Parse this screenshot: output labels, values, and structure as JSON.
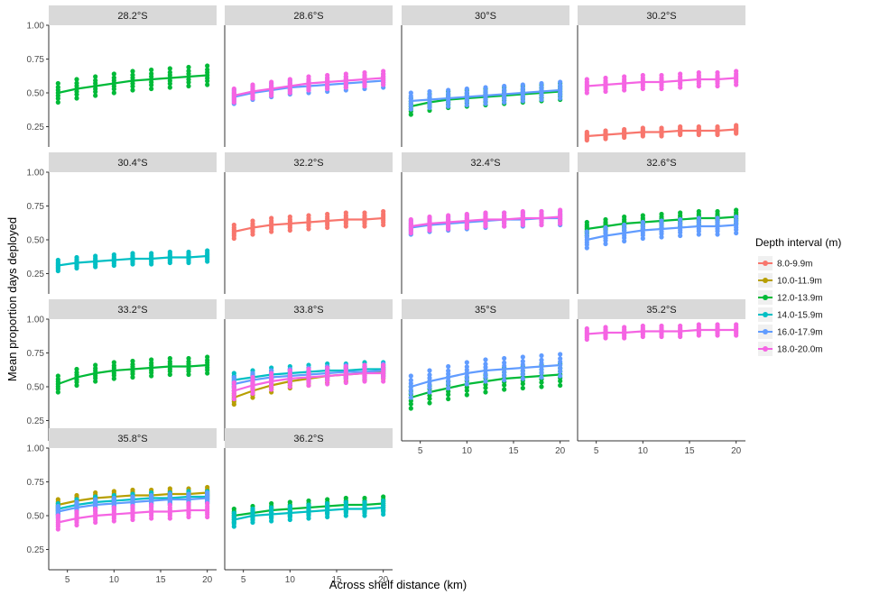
{
  "chart_data": {
    "type": "scatter",
    "xlabel": "Across shelf distance (km)",
    "ylabel": "Mean proportion days deployed",
    "x_ticks": [
      5,
      10,
      15,
      20
    ],
    "y_ticks": [
      0.25,
      0.5,
      0.75,
      1.0
    ],
    "y_tick_labels": [
      "0.25",
      "0.50",
      "0.75",
      "1.00"
    ],
    "xlim": [
      3,
      21
    ],
    "ylim": [
      0.1,
      1.0
    ],
    "x_samples": [
      4,
      6,
      8,
      10,
      12,
      14,
      16,
      18,
      20
    ],
    "legend": {
      "title": "Depth interval (m)",
      "entries": [
        {
          "label": "8.0-9.9m",
          "color": "#f8766d"
        },
        {
          "label": "10.0-11.9m",
          "color": "#b79f00"
        },
        {
          "label": "12.0-13.9m",
          "color": "#00ba38"
        },
        {
          "label": "14.0-15.9m",
          "color": "#00bfc4"
        },
        {
          "label": "16.0-17.9m",
          "color": "#619cff"
        },
        {
          "label": "18.0-20.0m",
          "color": "#f564e3"
        }
      ]
    },
    "panels": [
      {
        "label": "28.2°S",
        "series": [
          {
            "depth": "12.0-13.9m",
            "color": "#00ba38",
            "fit": [
              0.5,
              0.53,
              0.55,
              0.57,
              0.59,
              0.6,
              0.61,
              0.62,
              0.63
            ],
            "spread": 0.07
          }
        ]
      },
      {
        "label": "28.6°S",
        "series": [
          {
            "depth": "16.0-17.9m",
            "color": "#619cff",
            "fit": [
              0.47,
              0.5,
              0.52,
              0.54,
              0.55,
              0.56,
              0.57,
              0.58,
              0.59
            ],
            "spread": 0.05
          },
          {
            "depth": "18.0-20.0m",
            "color": "#f564e3",
            "fit": [
              0.48,
              0.51,
              0.53,
              0.55,
              0.57,
              0.58,
              0.59,
              0.6,
              0.61
            ],
            "spread": 0.05
          }
        ]
      },
      {
        "label": "30°S",
        "series": [
          {
            "depth": "12.0-13.9m",
            "color": "#00ba38",
            "fit": [
              0.4,
              0.43,
              0.45,
              0.46,
              0.47,
              0.48,
              0.49,
              0.5,
              0.51
            ],
            "spread": 0.06
          },
          {
            "depth": "16.0-17.9m",
            "color": "#619cff",
            "fit": [
              0.44,
              0.45,
              0.46,
              0.47,
              0.48,
              0.49,
              0.5,
              0.51,
              0.52
            ],
            "spread": 0.06
          }
        ]
      },
      {
        "label": "30.2°S",
        "series": [
          {
            "depth": "8.0-9.9m",
            "color": "#f8766d",
            "fit": [
              0.18,
              0.19,
              0.2,
              0.21,
              0.21,
              0.22,
              0.22,
              0.22,
              0.23
            ],
            "spread": 0.03
          },
          {
            "depth": "18.0-20.0m",
            "color": "#f564e3",
            "fit": [
              0.55,
              0.56,
              0.57,
              0.58,
              0.58,
              0.59,
              0.6,
              0.6,
              0.61
            ],
            "spread": 0.05
          }
        ]
      },
      {
        "label": "30.4°S",
        "series": [
          {
            "depth": "14.0-15.9m",
            "color": "#00bfc4",
            "fit": [
              0.31,
              0.33,
              0.34,
              0.35,
              0.36,
              0.36,
              0.37,
              0.37,
              0.38
            ],
            "spread": 0.04
          }
        ]
      },
      {
        "label": "32.2°S",
        "series": [
          {
            "depth": "8.0-9.9m",
            "color": "#f8766d",
            "fit": [
              0.56,
              0.59,
              0.61,
              0.62,
              0.63,
              0.64,
              0.65,
              0.65,
              0.66
            ],
            "spread": 0.05
          }
        ]
      },
      {
        "label": "32.4°S",
        "series": [
          {
            "depth": "16.0-17.9m",
            "color": "#619cff",
            "fit": [
              0.59,
              0.61,
              0.62,
              0.63,
              0.64,
              0.65,
              0.65,
              0.66,
              0.66
            ],
            "spread": 0.05
          },
          {
            "depth": "18.0-20.0m",
            "color": "#f564e3",
            "fit": [
              0.6,
              0.62,
              0.63,
              0.64,
              0.65,
              0.65,
              0.66,
              0.66,
              0.67
            ],
            "spread": 0.05
          }
        ]
      },
      {
        "label": "32.6°S",
        "series": [
          {
            "depth": "12.0-13.9m",
            "color": "#00ba38",
            "fit": [
              0.58,
              0.6,
              0.62,
              0.63,
              0.64,
              0.65,
              0.66,
              0.66,
              0.67
            ],
            "spread": 0.05
          },
          {
            "depth": "16.0-17.9m",
            "color": "#619cff",
            "fit": [
              0.5,
              0.53,
              0.55,
              0.57,
              0.58,
              0.59,
              0.6,
              0.6,
              0.61
            ],
            "spread": 0.06
          }
        ]
      },
      {
        "label": "33.2°S",
        "series": [
          {
            "depth": "12.0-13.9m",
            "color": "#00ba38",
            "fit": [
              0.52,
              0.57,
              0.6,
              0.62,
              0.63,
              0.64,
              0.65,
              0.65,
              0.66
            ],
            "spread": 0.06
          }
        ]
      },
      {
        "label": "33.8°S",
        "series": [
          {
            "depth": "10.0-11.9m",
            "color": "#b79f00",
            "fit": [
              0.42,
              0.47,
              0.51,
              0.54,
              0.56,
              0.58,
              0.59,
              0.6,
              0.61
            ],
            "spread": 0.05
          },
          {
            "depth": "14.0-15.9m",
            "color": "#00bfc4",
            "fit": [
              0.55,
              0.57,
              0.59,
              0.6,
              0.61,
              0.62,
              0.62,
              0.63,
              0.63
            ],
            "spread": 0.05
          },
          {
            "depth": "16.0-17.9m",
            "color": "#619cff",
            "fit": [
              0.52,
              0.55,
              0.57,
              0.58,
              0.59,
              0.6,
              0.61,
              0.61,
              0.62
            ],
            "spread": 0.05
          },
          {
            "depth": "18.0-20.0m",
            "color": "#f564e3",
            "fit": [
              0.47,
              0.51,
              0.54,
              0.56,
              0.57,
              0.58,
              0.59,
              0.6,
              0.6
            ],
            "spread": 0.06
          }
        ]
      },
      {
        "label": "35°S",
        "series": [
          {
            "depth": "12.0-13.9m",
            "color": "#00ba38",
            "fit": [
              0.42,
              0.46,
              0.49,
              0.52,
              0.54,
              0.56,
              0.57,
              0.58,
              0.59
            ],
            "spread": 0.08
          },
          {
            "depth": "16.0-17.9m",
            "color": "#619cff",
            "fit": [
              0.5,
              0.54,
              0.57,
              0.6,
              0.62,
              0.63,
              0.64,
              0.65,
              0.66
            ],
            "spread": 0.08
          }
        ]
      },
      {
        "label": "35.2°S",
        "series": [
          {
            "depth": "18.0-20.0m",
            "color": "#f564e3",
            "fit": [
              0.89,
              0.9,
              0.9,
              0.91,
              0.91,
              0.91,
              0.92,
              0.92,
              0.92
            ],
            "spread": 0.04
          }
        ]
      },
      {
        "label": "35.8°S",
        "series": [
          {
            "depth": "10.0-11.9m",
            "color": "#b79f00",
            "fit": [
              0.58,
              0.61,
              0.63,
              0.64,
              0.65,
              0.65,
              0.66,
              0.66,
              0.67
            ],
            "spread": 0.04
          },
          {
            "depth": "14.0-15.9m",
            "color": "#00bfc4",
            "fit": [
              0.55,
              0.58,
              0.6,
              0.61,
              0.62,
              0.63,
              0.63,
              0.64,
              0.64
            ],
            "spread": 0.04
          },
          {
            "depth": "16.0-17.9m",
            "color": "#619cff",
            "fit": [
              0.53,
              0.56,
              0.58,
              0.59,
              0.6,
              0.61,
              0.62,
              0.62,
              0.63
            ],
            "spread": 0.04
          },
          {
            "depth": "18.0-20.0m",
            "color": "#f564e3",
            "fit": [
              0.45,
              0.48,
              0.5,
              0.51,
              0.52,
              0.53,
              0.53,
              0.54,
              0.54
            ],
            "spread": 0.05
          }
        ]
      },
      {
        "label": "36.2°S",
        "series": [
          {
            "depth": "12.0-13.9m",
            "color": "#00ba38",
            "fit": [
              0.5,
              0.52,
              0.54,
              0.55,
              0.56,
              0.57,
              0.58,
              0.58,
              0.59
            ],
            "spread": 0.05
          },
          {
            "depth": "14.0-15.9m",
            "color": "#00bfc4",
            "fit": [
              0.47,
              0.5,
              0.51,
              0.52,
              0.53,
              0.54,
              0.55,
              0.55,
              0.56
            ],
            "spread": 0.05
          }
        ]
      }
    ]
  }
}
